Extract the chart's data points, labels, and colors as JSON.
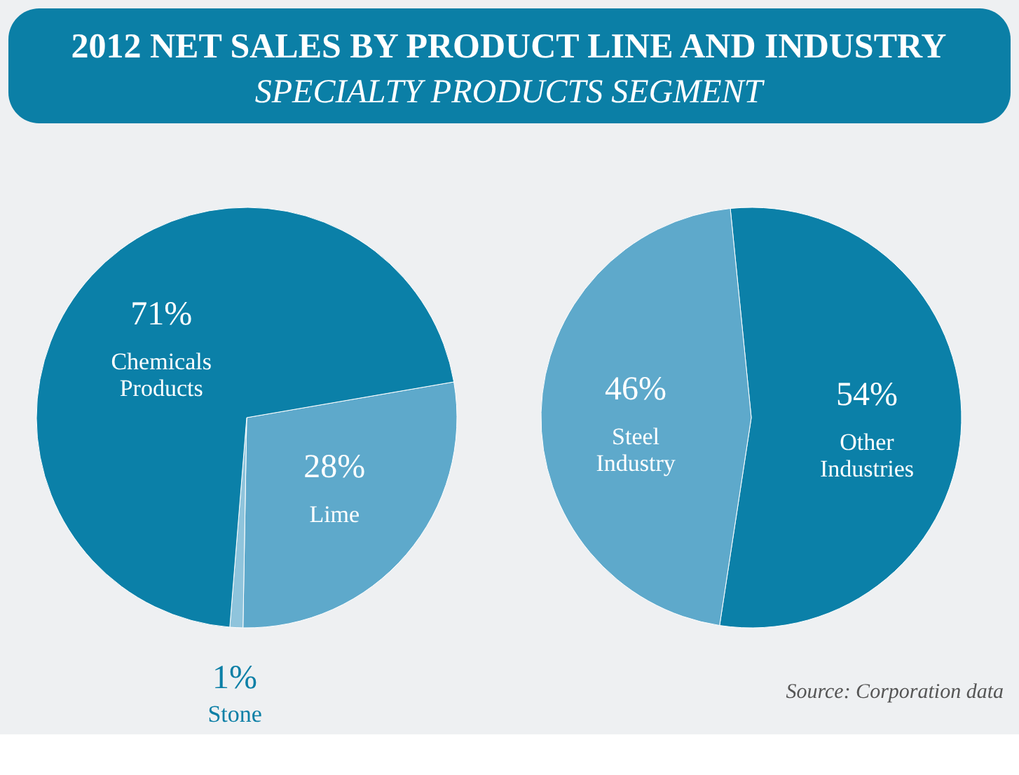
{
  "chart_data": [
    {
      "type": "pie",
      "title": "2012 NET SALES BY PRODUCT LINE AND INDUSTRY",
      "subtitle": "SPECIALTY PRODUCTS SEGMENT",
      "categories": [
        "Lime",
        "Stone",
        "Chemicals Products"
      ],
      "values": [
        28,
        1,
        71
      ],
      "colors": [
        "#5ea9cb",
        "#8fc4dc",
        "#0b80a8"
      ],
      "value_labels": [
        "28%",
        "1%",
        "71%"
      ],
      "data_labels": true,
      "legend": false
    },
    {
      "type": "pie",
      "categories": [
        "Other Industries",
        "Steel Industry"
      ],
      "values": [
        54,
        46
      ],
      "colors": [
        "#0b80a8",
        "#5ea9cb"
      ],
      "value_labels": [
        "54%",
        "46%"
      ],
      "data_labels": true,
      "legend": false,
      "annotations": [
        "Source: Corporation data"
      ]
    }
  ]
}
